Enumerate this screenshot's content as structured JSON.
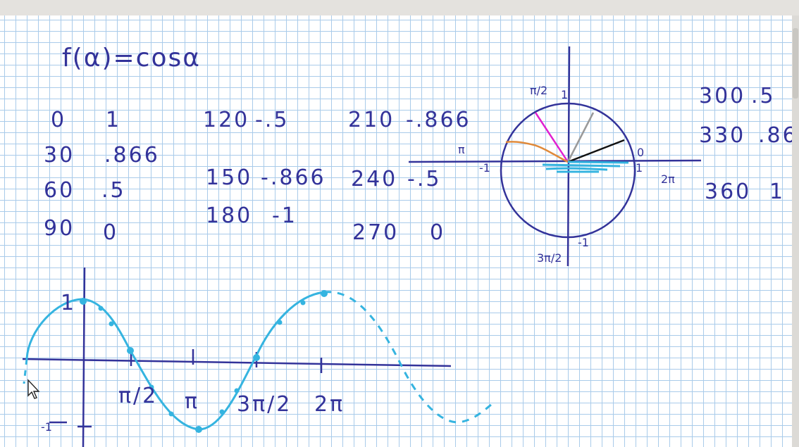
{
  "formula": "f(α)=cosα",
  "table": [
    {
      "angle": "0",
      "value": "1"
    },
    {
      "angle": "30",
      "value": ".866"
    },
    {
      "angle": "60",
      "value": ".5"
    },
    {
      "angle": "90",
      "value": "0"
    },
    {
      "angle": "120",
      "value": "-.5"
    },
    {
      "angle": "150",
      "value": "-.866"
    },
    {
      "angle": "180",
      "value": "-1"
    },
    {
      "angle": "210",
      "value": "-.866"
    },
    {
      "angle": "240",
      "value": "-.5"
    },
    {
      "angle": "270",
      "value": "0"
    },
    {
      "angle": "300",
      "value": ".5"
    },
    {
      "angle": "330",
      "value": ".86"
    },
    {
      "angle": "360",
      "value": "1"
    }
  ],
  "unit_circle": {
    "top_label": "π/2",
    "left_label": "π",
    "right_label": "0",
    "right_far_label": "2π",
    "bottom_label": "3π/2",
    "tick_left": "-1",
    "tick_right": "1",
    "tick_bottom": "-1",
    "top_tick": "1"
  },
  "graph": {
    "y_top": "1",
    "y_bottom": "-1",
    "x_ticks": [
      "π/2",
      "π",
      "3π/2",
      "2π"
    ]
  },
  "colors": {
    "ink": "#33339a",
    "cyan": "#35b4e0",
    "grid": "#a9cbea",
    "magenta": "#e020d0",
    "orange": "#e08a3a",
    "gray": "#9a9a9a",
    "black": "#111111"
  }
}
